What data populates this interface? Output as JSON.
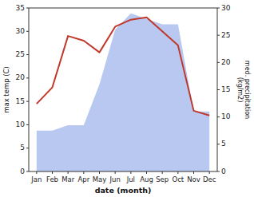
{
  "chart_data": {
    "type": "line",
    "categories": [
      "Jan",
      "Feb",
      "Mar",
      "Apr",
      "May",
      "Jun",
      "Jul",
      "Aug",
      "Sep",
      "Oct",
      "Nov",
      "Dec"
    ],
    "xlabel": "date (month)",
    "ylabel": "max temp (C)",
    "y2label": "med. precipitation\n(kg/m2)",
    "series": [
      {
        "type": "area",
        "color": "#b8c8f0",
        "axis": "y2",
        "values": [
          7.5,
          7.5,
          8.5,
          8.5,
          16,
          26,
          29,
          28,
          27,
          27,
          11,
          11
        ]
      },
      {
        "type": "line",
        "color": "#c0392b",
        "values": [
          14.5,
          18,
          29,
          28,
          25.5,
          31,
          32.5,
          33,
          30,
          27,
          13,
          12
        ]
      }
    ],
    "ylim": [
      0,
      35
    ],
    "yticks": [
      0,
      5,
      10,
      15,
      20,
      25,
      30,
      35
    ],
    "y2lim": [
      0,
      30
    ],
    "y2ticks": [
      0,
      5,
      10,
      15,
      20,
      25,
      30
    ],
    "grid": false
  }
}
